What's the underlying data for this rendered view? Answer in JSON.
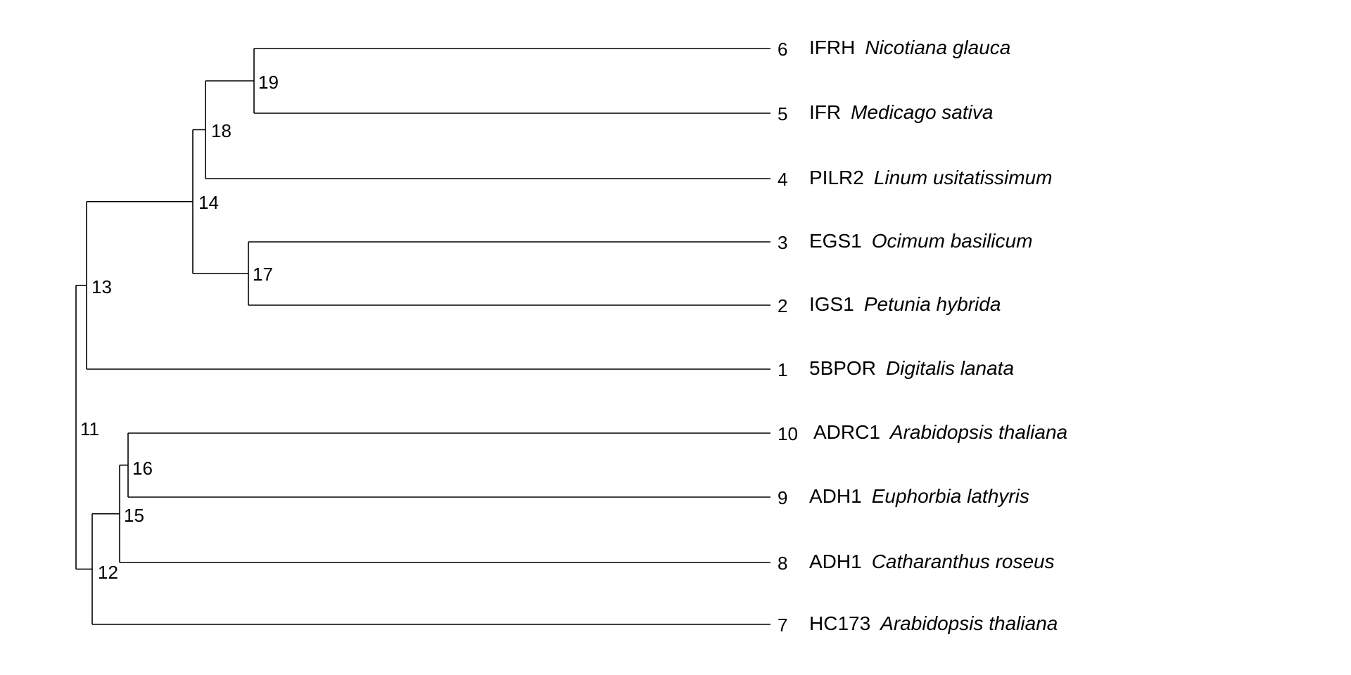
{
  "tree": {
    "root": "11",
    "leaves": [
      {
        "id": "6",
        "gene": "IFRH",
        "species": "Nicotiana glauca"
      },
      {
        "id": "5",
        "gene": "IFR",
        "species": "Medicago sativa"
      },
      {
        "id": "4",
        "gene": "PILR2",
        "species": "Linum usitatissimum"
      },
      {
        "id": "3",
        "gene": "EGS1",
        "species": "Ocimum basilicum"
      },
      {
        "id": "2",
        "gene": "IGS1",
        "species": "Petunia hybrida"
      },
      {
        "id": "1",
        "gene": "5BPOR",
        "species": "Digitalis lanata"
      },
      {
        "id": "10",
        "gene": "ADRC1",
        "species": "Arabidopsis thaliana"
      },
      {
        "id": "9",
        "gene": "ADH1",
        "species": "Euphorbia lathyris"
      },
      {
        "id": "8",
        "gene": "ADH1",
        "species": "Catharanthus roseus"
      },
      {
        "id": "7",
        "gene": "HC173",
        "species": "Arabidopsis thaliana"
      }
    ],
    "internal_nodes": [
      {
        "id": "19",
        "children": [
          "6",
          "5"
        ]
      },
      {
        "id": "18",
        "children": [
          "19",
          "4"
        ]
      },
      {
        "id": "17",
        "children": [
          "3",
          "2"
        ]
      },
      {
        "id": "14",
        "children": [
          "18",
          "17"
        ]
      },
      {
        "id": "13",
        "children": [
          "14",
          "1"
        ]
      },
      {
        "id": "16",
        "children": [
          "10",
          "9"
        ]
      },
      {
        "id": "15",
        "children": [
          "16",
          "8"
        ]
      },
      {
        "id": "12",
        "children": [
          "15",
          "7"
        ]
      },
      {
        "id": "11",
        "children": [
          "13",
          "12"
        ]
      }
    ]
  }
}
